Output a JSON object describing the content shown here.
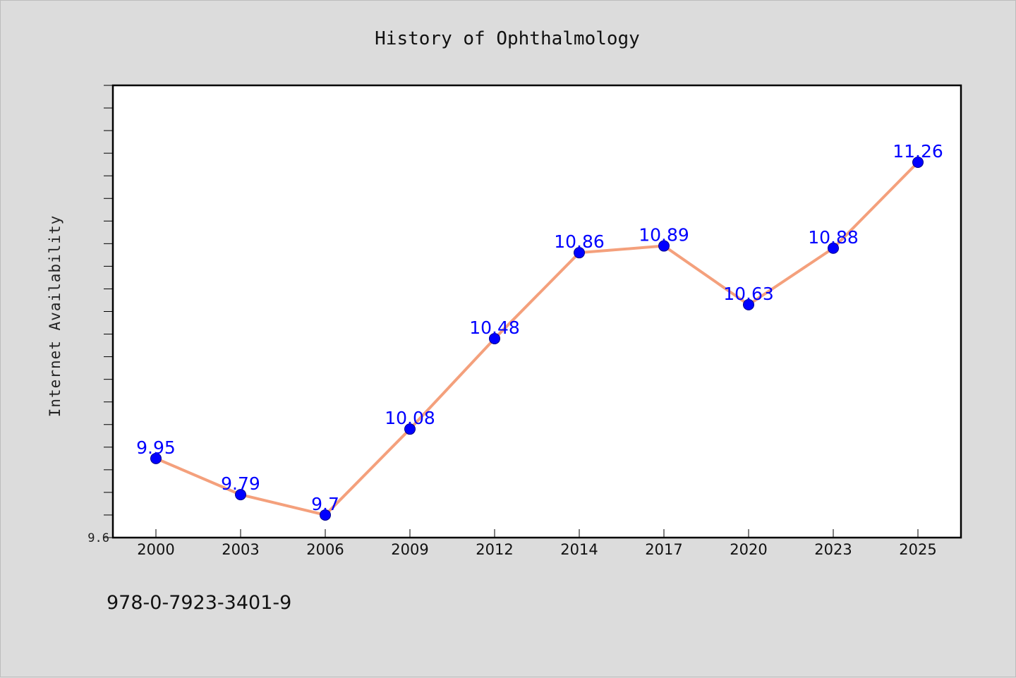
{
  "chart_data": {
    "type": "line",
    "title": "History of Ophthalmology",
    "xlabel": "",
    "ylabel": "Internet Availability",
    "categories": [
      "2000",
      "2003",
      "2006",
      "2009",
      "2012",
      "2014",
      "2017",
      "2020",
      "2023",
      "2025"
    ],
    "series": [
      {
        "values": [
          9.95,
          9.79,
          9.7,
          10.08,
          10.48,
          10.86,
          10.89,
          10.63,
          10.88,
          11.26
        ]
      }
    ],
    "data_labels": [
      "9.95",
      "9.79",
      "9.7",
      "10.08",
      "10.48",
      "10.86",
      "10.89",
      "10.63",
      "10.88",
      "11.26"
    ],
    "y_tick_labels": [
      {
        "value": 9.6,
        "label": "9.6"
      }
    ],
    "ylim": [
      9.6,
      11.6
    ],
    "y_minor_step": 0.1,
    "grid": false,
    "colors": {
      "line": "#f4a07c",
      "marker": "#0000ff",
      "label": "#0000ff",
      "background": "#dcdcdc",
      "plot_background": "#ffffff"
    }
  },
  "footer": {
    "text": "978-0-7923-3401-9"
  }
}
